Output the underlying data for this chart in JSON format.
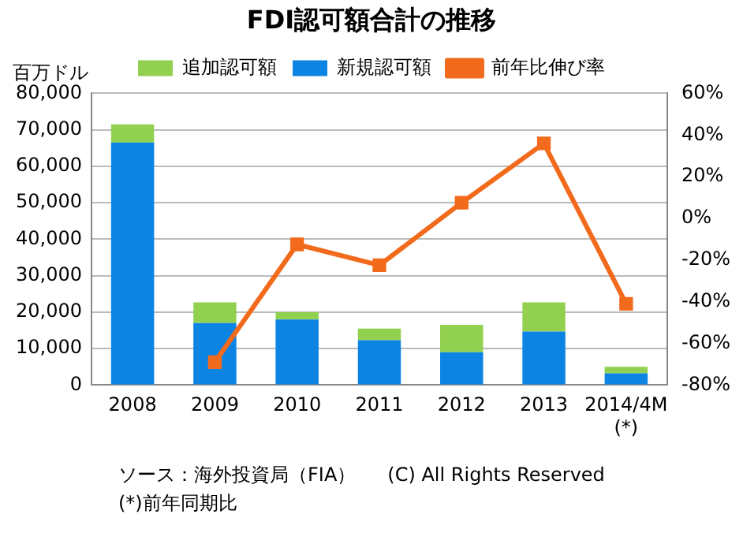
{
  "chart_data": {
    "type": "bar",
    "title": "FDI認可額合計の推移",
    "ylabel": "百万ドル",
    "categories": [
      "2008",
      "2009",
      "2010",
      "2011",
      "2012",
      "2013",
      "2014/4M\n(*)"
    ],
    "stacked": true,
    "series": [
      {
        "name": "新規認可額",
        "color": "#0c84e4",
        "values": [
          66500,
          17000,
          18000,
          12300,
          9000,
          14700,
          3200
        ]
      },
      {
        "name": "追加認可額",
        "color": "#92d050",
        "values": [
          5000,
          5700,
          2000,
          3200,
          7500,
          8000,
          1800
        ]
      },
      {
        "name": "前年比伸び率",
        "type": "line",
        "axis": "y2",
        "color": "#f26a1b",
        "marker": "square",
        "values": [
          null,
          -69,
          -12.5,
          -22.5,
          7.5,
          36,
          -41
        ]
      }
    ],
    "ylim": [
      0,
      80000
    ],
    "yticks": [
      0,
      {
        "value": 10000,
        "label": "10,000"
      },
      {
        "value": 20000,
        "label": "20,000"
      },
      {
        "value": 30000,
        "label": "30,000"
      },
      {
        "value": 40000,
        "label": "40,000"
      },
      {
        "value": 50000,
        "label": "50,000"
      },
      {
        "value": 60000,
        "label": "60,000"
      },
      {
        "value": 70000,
        "label": "70,000"
      },
      {
        "value": 80000,
        "label": "80,000"
      }
    ],
    "y2lim": [
      -80,
      60
    ],
    "y2ticks": [
      {
        "value": -80,
        "label": "-80%"
      },
      {
        "value": -60,
        "label": "-60%"
      },
      {
        "value": -40,
        "label": "-40%"
      },
      {
        "value": -20,
        "label": "-20%"
      },
      {
        "value": 0,
        "label": "0%"
      },
      {
        "value": 20,
        "label": "20%"
      },
      {
        "value": 40,
        "label": "40%"
      },
      {
        "value": 60,
        "label": "60%"
      }
    ],
    "grid": "y",
    "legend": "top",
    "annotations": [
      "ソース：海外投資局（FIA）",
      "(C) All Rights Reserved",
      "(*)前年同期比"
    ]
  }
}
